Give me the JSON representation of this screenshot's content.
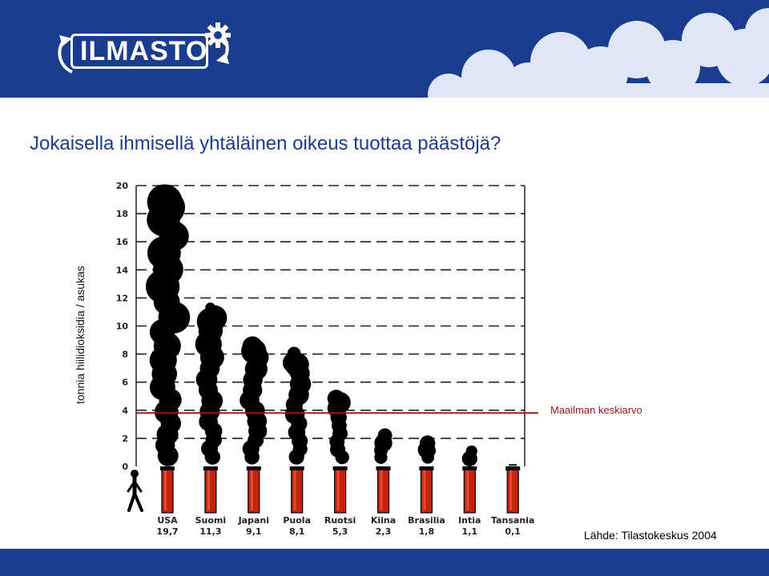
{
  "header": {
    "logo_text": "ILMASTO",
    "colors": {
      "banner": "#1a3c8f",
      "cloud": "#dfe7f6"
    },
    "icons": [
      "gear-icon",
      "recycle-arrows-icon"
    ]
  },
  "title": "Jokaisella ihmisellä yhtäläinen oikeus tuottaa päästöjä?",
  "source": "Lähde: Tilastokeskus 2004",
  "chart_data": {
    "type": "bar",
    "title": "",
    "xlabel": "",
    "ylabel": "tonnia hiilidioksidia / asukas",
    "ylim": [
      0,
      20
    ],
    "yticks": [
      0,
      2,
      4,
      6,
      8,
      10,
      12,
      14,
      16,
      18,
      20
    ],
    "grid": true,
    "categories": [
      "USA",
      "Suomi",
      "Japani",
      "Puola",
      "Ruotsi",
      "Kiina",
      "Brasilia",
      "Intia",
      "Tansania"
    ],
    "values": [
      19.7,
      11.3,
      9.1,
      8.1,
      5.3,
      2.3,
      1.8,
      1.1,
      0.1
    ],
    "value_labels": [
      "19,7",
      "11,3",
      "9,1",
      "8,1",
      "5,3",
      "2,3",
      "1,8",
      "1,1",
      "0,1"
    ],
    "reference_line": {
      "label": "Maailman keskiarvo",
      "value": 3.8,
      "color": "#a01818"
    },
    "colors": {
      "smoke": "#000000",
      "chimney": "#c0240c",
      "grid": "#222222"
    },
    "icons": [
      "person-icon",
      "chimney-icon",
      "smoke-cloud-icon"
    ]
  }
}
